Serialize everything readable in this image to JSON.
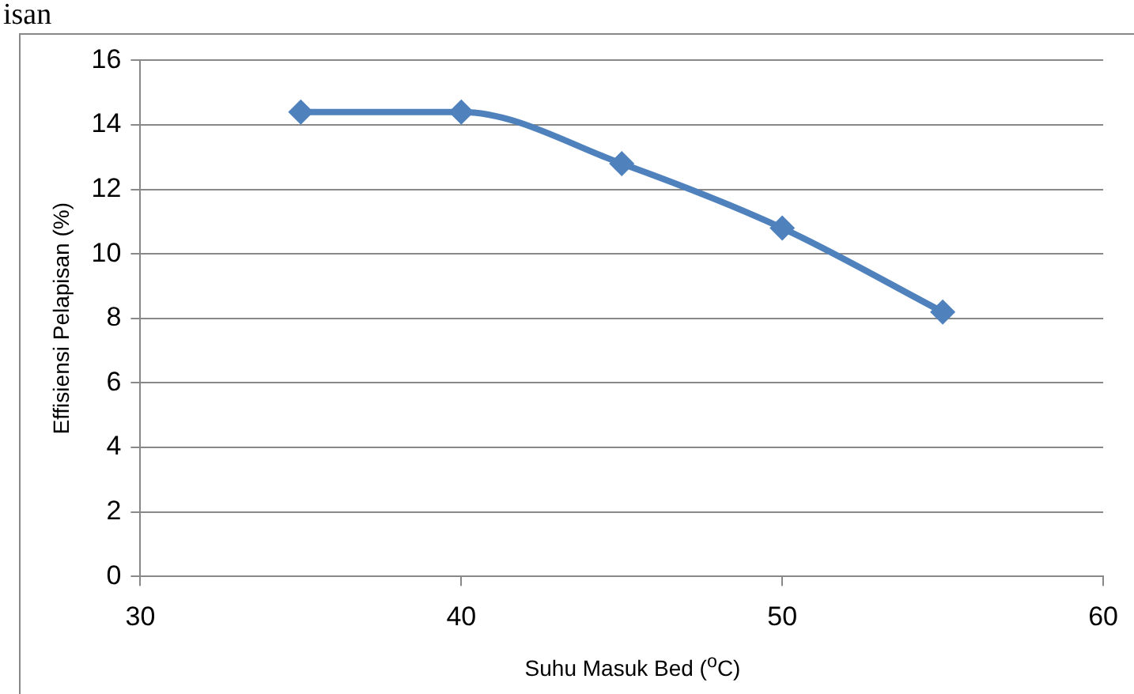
{
  "chart_data": {
    "type": "line",
    "xlabel": "Suhu Masuk Bed ($^{o}$C)",
    "ylabel": "Effisiensi Pelapisan (%)",
    "annotations": [
      "isan"
    ],
    "x": [
      35,
      40,
      45,
      50,
      55
    ],
    "series": [
      {
        "color": "#4f81bd",
        "values": [
          14.4,
          14.4,
          12.8,
          10.8,
          8.2
        ]
      }
    ],
    "xlim": [
      30,
      60
    ],
    "xticks": [
      30,
      40,
      50,
      60
    ],
    "ylim": [
      0,
      16
    ],
    "yticks": [
      0,
      2,
      4,
      6,
      8,
      10,
      12,
      14,
      16
    ],
    "grid": "y",
    "legend": false,
    "marker": "diamond",
    "line_style": "solid"
  }
}
